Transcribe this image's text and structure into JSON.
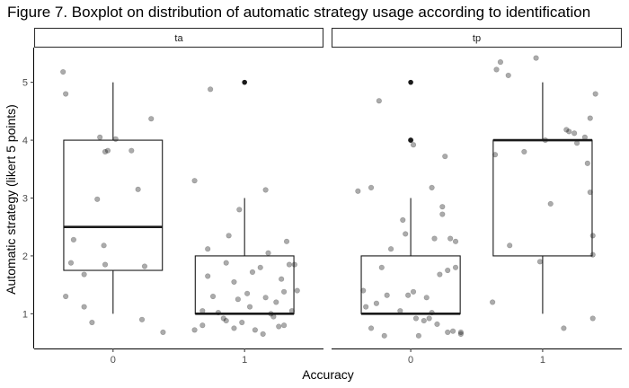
{
  "figure": {
    "title": "Figure 7. Boxplot on distribution of automatic strategy usage according to identification"
  },
  "chart_data": {
    "type": "boxplot",
    "xlabel": "Accuracy",
    "ylabel": "Automatic strategy (likert 5 points)",
    "y_ticks": [
      "1",
      "2",
      "3",
      "4",
      "5"
    ],
    "x_ticks": [
      "0",
      "1"
    ],
    "ylim": [
      0.4,
      5.6
    ],
    "grid": false,
    "facets": [
      {
        "name": "ta",
        "groups": [
          {
            "category": "0",
            "box": {
              "lower_whisker": 1,
              "q1": 1.75,
              "median": 2.5,
              "q3": 4,
              "upper_whisker": 5
            },
            "outliers": [],
            "jitter": [
              [
                -0.38,
                5.18
              ],
              [
                -0.36,
                4.8
              ],
              [
                -0.32,
                1.88
              ],
              [
                -0.36,
                1.3
              ],
              [
                -0.3,
                2.28
              ],
              [
                -0.22,
                1.68
              ],
              [
                -0.22,
                1.12
              ],
              [
                -0.16,
                0.85
              ],
              [
                -0.1,
                4.05
              ],
              [
                -0.06,
                1.85
              ],
              [
                -0.06,
                3.8
              ],
              [
                -0.04,
                3.82
              ],
              [
                0.02,
                4.02
              ],
              [
                -0.12,
                2.98
              ],
              [
                -0.07,
                2.18
              ],
              [
                0.14,
                3.82
              ],
              [
                0.19,
                3.15
              ],
              [
                0.24,
                1.82
              ],
              [
                0.29,
                4.37
              ],
              [
                0.22,
                0.9
              ],
              [
                0.38,
                0.68
              ]
            ]
          },
          {
            "category": "1",
            "box": {
              "lower_whisker": 1,
              "q1": 1,
              "median": 1,
              "q3": 2,
              "upper_whisker": 3
            },
            "outliers": [
              5
            ],
            "jitter": [
              [
                -0.38,
                0.72
              ],
              [
                -0.38,
                3.3
              ],
              [
                -0.32,
                1.05
              ],
              [
                -0.32,
                0.8
              ],
              [
                -0.28,
                2.12
              ],
              [
                -0.28,
                1.65
              ],
              [
                -0.26,
                4.88
              ],
              [
                -0.24,
                1.3
              ],
              [
                -0.2,
                1.02
              ],
              [
                -0.16,
                0.92
              ],
              [
                -0.14,
                0.88
              ],
              [
                -0.08,
                0.75
              ],
              [
                -0.14,
                1.88
              ],
              [
                -0.12,
                2.35
              ],
              [
                -0.08,
                1.55
              ],
              [
                -0.04,
                2.8
              ],
              [
                -0.05,
                1.25
              ],
              [
                -0.02,
                0.85
              ],
              [
                0.02,
                1.35
              ],
              [
                0.04,
                1.12
              ],
              [
                0.06,
                1.72
              ],
              [
                0.08,
                0.72
              ],
              [
                0.12,
                1.8
              ],
              [
                0.14,
                0.65
              ],
              [
                0.16,
                1.28
              ],
              [
                0.16,
                3.14
              ],
              [
                0.18,
                2.05
              ],
              [
                0.2,
                1.0
              ],
              [
                0.22,
                0.95
              ],
              [
                0.24,
                1.2
              ],
              [
                0.26,
                0.78
              ],
              [
                0.28,
                1.6
              ],
              [
                0.3,
                0.8
              ],
              [
                0.3,
                1.38
              ],
              [
                0.32,
                2.25
              ],
              [
                0.34,
                1.85
              ],
              [
                0.36,
                1.05
              ],
              [
                0.38,
                1.85
              ],
              [
                0.4,
                1.4
              ]
            ]
          }
        ]
      },
      {
        "name": "tp",
        "groups": [
          {
            "category": "0",
            "box": {
              "lower_whisker": 1,
              "q1": 1,
              "median": 1,
              "q3": 2,
              "upper_whisker": 3
            },
            "outliers": [
              4,
              5
            ],
            "jitter": [
              [
                -0.4,
                3.12
              ],
              [
                -0.36,
                1.4
              ],
              [
                -0.34,
                1.12
              ],
              [
                -0.3,
                3.18
              ],
              [
                -0.3,
                0.75
              ],
              [
                -0.26,
                1.18
              ],
              [
                -0.24,
                4.68
              ],
              [
                -0.22,
                1.8
              ],
              [
                -0.2,
                0.62
              ],
              [
                -0.18,
                1.32
              ],
              [
                -0.15,
                2.12
              ],
              [
                -0.08,
                1.05
              ],
              [
                -0.06,
                2.62
              ],
              [
                -0.04,
                2.38
              ],
              [
                -0.02,
                1.32
              ],
              [
                0.02,
                1.38
              ],
              [
                0.04,
                0.92
              ],
              [
                0.06,
                0.62
              ],
              [
                0.0,
                4.0
              ],
              [
                0.02,
                3.92
              ],
              [
                0.1,
                0.88
              ],
              [
                0.12,
                1.28
              ],
              [
                0.14,
                0.92
              ],
              [
                0.16,
                1.02
              ],
              [
                0.16,
                3.18
              ],
              [
                0.18,
                2.3
              ],
              [
                0.2,
                0.82
              ],
              [
                0.22,
                1.68
              ],
              [
                0.24,
                2.85
              ],
              [
                0.24,
                2.72
              ],
              [
                0.26,
                3.72
              ],
              [
                0.28,
                1.75
              ],
              [
                0.28,
                0.68
              ],
              [
                0.3,
                2.3
              ],
              [
                0.32,
                0.7
              ],
              [
                0.34,
                1.8
              ],
              [
                0.34,
                2.25
              ],
              [
                0.38,
                0.65
              ],
              [
                0.38,
                0.68
              ]
            ]
          },
          {
            "category": "1",
            "box": {
              "lower_whisker": 1,
              "q1": 2,
              "median": 4,
              "q3": 4,
              "upper_whisker": 5
            },
            "outliers": [],
            "jitter": [
              [
                -0.38,
                1.2
              ],
              [
                -0.36,
                3.75
              ],
              [
                -0.35,
                5.22
              ],
              [
                -0.32,
                5.35
              ],
              [
                -0.26,
                5.12
              ],
              [
                -0.25,
                2.18
              ],
              [
                -0.14,
                3.8
              ],
              [
                -0.02,
                1.9
              ],
              [
                0.02,
                4.0
              ],
              [
                0.06,
                2.9
              ],
              [
                0.16,
                0.75
              ],
              [
                0.18,
                4.18
              ],
              [
                0.2,
                4.15
              ],
              [
                0.24,
                4.12
              ],
              [
                0.26,
                3.95
              ],
              [
                0.32,
                4.05
              ],
              [
                0.34,
                3.6
              ],
              [
                0.36,
                4.38
              ],
              [
                0.36,
                3.1
              ],
              [
                0.38,
                2.02
              ],
              [
                0.38,
                0.92
              ],
              [
                0.38,
                2.35
              ],
              [
                0.4,
                4.8
              ],
              [
                -0.05,
                5.42
              ]
            ]
          }
        ]
      }
    ]
  }
}
